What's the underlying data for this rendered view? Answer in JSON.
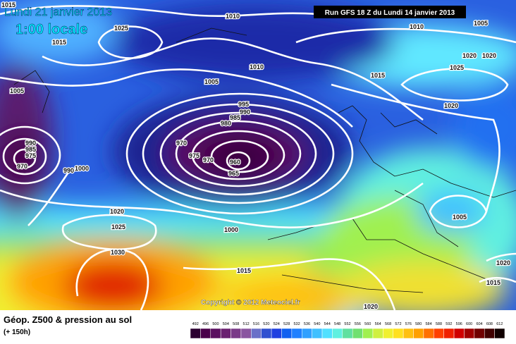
{
  "header": {
    "valid_date": "Lundi 21 janvier 2013",
    "local_time": "1:00 locale",
    "run": "Run GFS 18 Z du Lundi 14 janvier 2013"
  },
  "isobar_labels": [
    1015,
    1010,
    1025,
    1015,
    1010,
    1005,
    1005,
    995,
    990,
    985,
    980,
    970,
    975,
    970,
    960,
    965,
    990,
    985,
    975,
    970,
    990,
    1000,
    1020,
    1025,
    1030,
    1000,
    1015,
    1020,
    1005,
    1020,
    1015,
    1010,
    1005,
    1020,
    1020,
    1025,
    1015,
    1020
  ],
  "copyright": "Copyright © 2012 Meteociel.fr",
  "legend": {
    "title": "Géop. Z500 & pression au sol",
    "lead": "(+ 150h)",
    "ticks": [
      492,
      496,
      500,
      504,
      508,
      512,
      516,
      520,
      524,
      528,
      532,
      536,
      540,
      544,
      548,
      552,
      556,
      560,
      564,
      568,
      572,
      576,
      580,
      584,
      588,
      592,
      596,
      600,
      604,
      608,
      612
    ],
    "colors": [
      "#2b0030",
      "#4a004a",
      "#5a1060",
      "#6a2070",
      "#7a3a88",
      "#8a55a0",
      "#6a70c8",
      "#3050d0",
      "#2040e0",
      "#1060f0",
      "#2080ff",
      "#30a0ff",
      "#40c0ff",
      "#50e0ff",
      "#60f0e0",
      "#60e0a0",
      "#70e070",
      "#a0f050",
      "#d0f040",
      "#f0f030",
      "#ffe020",
      "#ffc010",
      "#ffa000",
      "#ff7000",
      "#ff4000",
      "#f02000",
      "#d00000",
      "#a00000",
      "#700000",
      "#400000",
      "#100000"
    ]
  }
}
